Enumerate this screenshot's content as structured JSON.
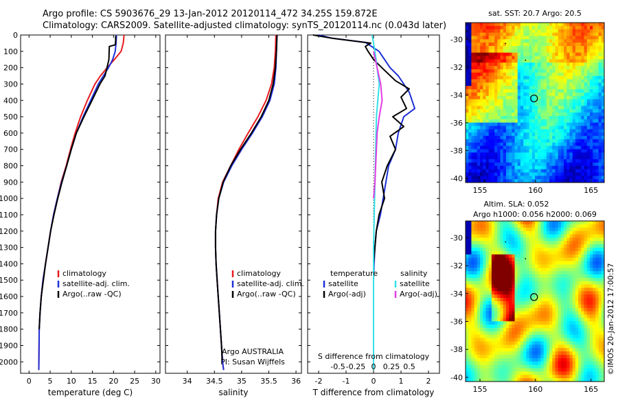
{
  "header": {
    "line1": "Argo profile: CS 5903676_29 13-Jan-2012 20120114_472 34.25S 159.872E",
    "line2": "Climatology: CARS2009. Satellite-adjusted climatology: synTS_20120114.nc (0.043d later)"
  },
  "colors": {
    "red": "#e8191c",
    "blue": "#1c2ed6",
    "black": "#000000",
    "cyan": "#33e0e6",
    "magenta": "#e23ce2"
  },
  "chart_data": [
    {
      "type": "line",
      "id": "temperature",
      "xlabel": "temperature (deg C)",
      "ylabel": "",
      "xlim": [
        -2,
        31
      ],
      "ylim": [
        2070,
        0
      ],
      "xticks": [
        0,
        5,
        10,
        15,
        20,
        25,
        30
      ],
      "yticks": [
        0,
        100,
        200,
        300,
        400,
        500,
        600,
        700,
        800,
        900,
        1000,
        1100,
        1200,
        1300,
        1400,
        1500,
        1600,
        1700,
        1800,
        1900,
        2000
      ],
      "legend": [
        "climatology",
        "satellite-adj. clim.",
        "Argo(..raw -QC)"
      ],
      "series": [
        {
          "name": "climatology",
          "color": "#e8191c",
          "x": [
            22.5,
            22.3,
            21.8,
            20.2,
            18.5,
            16.9,
            15.6,
            13.8,
            12.2,
            10.9,
            9.8,
            8.8,
            7.6,
            6.7,
            5.8,
            5.1,
            4.5,
            3.9,
            3.3,
            2.9,
            2.6,
            2.4,
            2.3
          ],
          "y": [
            0,
            50,
            100,
            150,
            200,
            250,
            300,
            400,
            500,
            600,
            700,
            800,
            900,
            1000,
            1100,
            1200,
            1300,
            1400,
            1500,
            1600,
            1700,
            1800,
            2050
          ]
        },
        {
          "name": "satellite-adj. clim.",
          "color": "#1c2ed6",
          "x": [
            20.7,
            20.6,
            20.4,
            19.8,
            18.8,
            17.6,
            16.4,
            14.6,
            12.8,
            11.2,
            10.0,
            8.9,
            7.7,
            6.7,
            5.8,
            5.1,
            4.5,
            3.9,
            3.3,
            2.9,
            2.6,
            2.4,
            2.3
          ],
          "y": [
            0,
            50,
            100,
            150,
            200,
            250,
            300,
            400,
            500,
            600,
            700,
            800,
            900,
            1000,
            1100,
            1200,
            1300,
            1400,
            1500,
            1600,
            1700,
            1800,
            2050
          ]
        },
        {
          "name": "Argo(..raw -QC)",
          "color": "#000000",
          "x": [
            20.5,
            20.5,
            20.4,
            19.0,
            18.9,
            18.0,
            16.8,
            14.9,
            13.0,
            11.2,
            10.0,
            8.9,
            7.8,
            6.8,
            5.9,
            5.1,
            4.5,
            3.9,
            3.4,
            2.9,
            2.6,
            2.4
          ],
          "y": [
            5,
            40,
            60,
            70,
            150,
            250,
            300,
            400,
            500,
            600,
            700,
            800,
            900,
            1000,
            1100,
            1200,
            1300,
            1400,
            1500,
            1600,
            1700,
            1800
          ]
        }
      ]
    },
    {
      "type": "line",
      "id": "salinity",
      "xlabel": "salinity",
      "ylabel": "",
      "xlim": [
        33.6,
        36.1
      ],
      "ylim": [
        2070,
        0
      ],
      "xticks": [
        34,
        34.5,
        35,
        35.5,
        36
      ],
      "legend": [
        "climatology",
        "satellite-adj. clim.",
        "Argo(..raw -QC)"
      ],
      "annotation": [
        "Argo AUSTRALIA",
        "PI: Susan Wijffels"
      ],
      "series": [
        {
          "name": "climatology",
          "color": "#e8191c",
          "x": [
            35.63,
            35.62,
            35.6,
            35.55,
            35.45,
            35.3,
            35.12,
            34.95,
            34.8,
            34.65,
            34.57,
            34.54,
            34.52,
            34.52,
            34.53,
            34.55,
            34.57,
            34.59,
            34.61,
            34.63,
            34.65,
            34.66,
            34.67
          ],
          "y": [
            0,
            100,
            200,
            300,
            400,
            500,
            600,
            700,
            800,
            900,
            1000,
            1100,
            1200,
            1300,
            1400,
            1500,
            1600,
            1700,
            1800,
            1900,
            2000,
            2030,
            2050
          ]
        },
        {
          "name": "satellite-adj. clim.",
          "color": "#1c2ed6",
          "x": [
            35.65,
            35.64,
            35.63,
            35.6,
            35.52,
            35.38,
            35.2,
            35.0,
            34.82,
            34.67,
            34.58,
            34.54,
            34.52,
            34.52,
            34.53,
            34.55,
            34.57,
            34.59,
            34.61,
            34.63,
            34.65,
            34.66,
            34.67
          ],
          "y": [
            0,
            100,
            200,
            300,
            400,
            500,
            600,
            700,
            800,
            900,
            1000,
            1100,
            1200,
            1300,
            1400,
            1500,
            1600,
            1700,
            1800,
            1900,
            2000,
            2030,
            2050
          ]
        },
        {
          "name": "Argo(..raw -QC)",
          "color": "#000000",
          "x": [
            35.65,
            35.64,
            35.62,
            35.58,
            35.5,
            35.36,
            35.18,
            34.98,
            34.8,
            34.66,
            34.58,
            34.54,
            34.52,
            34.52,
            34.53,
            34.55,
            34.57,
            34.59,
            34.61,
            34.63,
            34.64
          ],
          "y": [
            0,
            100,
            200,
            300,
            400,
            500,
            600,
            700,
            800,
            900,
            1000,
            1100,
            1200,
            1300,
            1400,
            1500,
            1600,
            1700,
            1800,
            1900,
            1990
          ]
        }
      ]
    },
    {
      "type": "line",
      "id": "difference",
      "xlabel": "T difference from climatology",
      "xlabel_top": "S difference from climatology",
      "xlim": [
        -2.4,
        2.4
      ],
      "ylim": [
        2070,
        0
      ],
      "xticks": [
        -2,
        -1,
        0,
        1,
        2
      ],
      "xtick_labels": [
        "-2",
        "-1",
        "0",
        "1",
        "2"
      ],
      "sticks": [
        -0.5,
        -0.25,
        0,
        0.25,
        0.5
      ],
      "stick_labels": [
        "-0.5",
        "-0.25",
        "0",
        "0.25",
        "0.5"
      ],
      "legend_temperature": [
        "temperature",
        "satellite",
        "Argo(-adj)"
      ],
      "legend_salinity": [
        "salinity",
        "satellite",
        "Argo(-adj)"
      ],
      "series": [
        {
          "name": "T satellite",
          "color": "#1c2ed6",
          "x": [
            -2.0,
            -1.5,
            -0.3,
            0.2,
            0.6,
            0.9,
            1.3,
            1.5,
            1.1,
            0.9,
            0.8,
            0.55,
            0.45,
            0.35,
            0.25,
            0.1,
            0.05,
            0.02,
            0.0,
            0.0,
            0.0
          ],
          "y": [
            0,
            20,
            45,
            100,
            200,
            250,
            350,
            450,
            500,
            600,
            700,
            800,
            900,
            1000,
            1100,
            1200,
            1300,
            1400,
            1500,
            1700,
            2000
          ]
        },
        {
          "name": "T Argo(-adj)",
          "color": "#000000",
          "x": [
            -2.2,
            -1.5,
            -0.1,
            -0.3,
            -0.2,
            0.0,
            0.3,
            0.8,
            1.3,
            1.0,
            1.2,
            0.7,
            1.1,
            0.6,
            0.8,
            0.5,
            0.3,
            0.4,
            0.2,
            0.1,
            0.0,
            0.0
          ],
          "y": [
            0,
            20,
            50,
            70,
            100,
            150,
            200,
            280,
            330,
            380,
            450,
            500,
            560,
            620,
            700,
            800,
            900,
            1000,
            1100,
            1200,
            1400,
            1500
          ]
        },
        {
          "name": "S satellite",
          "color": "#33e0e6",
          "x": [
            -0.02,
            0.02,
            0.05,
            0.08,
            0.06,
            0.04,
            0.03,
            0.02,
            0.01,
            0.0,
            0.0,
            0.0
          ],
          "y": [
            0,
            100,
            200,
            300,
            400,
            500,
            700,
            900,
            1100,
            1300,
            1700,
            2050
          ]
        },
        {
          "name": "S Argo(-adj)",
          "color": "#e23ce2",
          "x": [
            0.0,
            0.05,
            0.1,
            0.12,
            0.08,
            0.05,
            0.04,
            0.03,
            0.02,
            0.0
          ],
          "y": [
            100,
            200,
            300,
            400,
            500,
            600,
            700,
            800,
            900,
            1000
          ]
        }
      ]
    },
    {
      "type": "heatmap",
      "id": "sst-map",
      "title": "sat. SST: 20.7 Argo: 20.5",
      "xlim": [
        153.7,
        166.2
      ],
      "ylim": [
        -40.3,
        -28.8
      ],
      "xticks": [
        155,
        160,
        165
      ],
      "yticks": [
        -30,
        -32,
        -34,
        -36,
        -38,
        -40
      ],
      "marker": {
        "lon": 159.872,
        "lat": -34.25
      }
    },
    {
      "type": "heatmap",
      "id": "sla-map",
      "title": "Altim. SLA: 0.052",
      "subtitle": "Argo h1000: 0.056 h2000: 0.069",
      "xlim": [
        153.7,
        166.2
      ],
      "ylim": [
        -40.3,
        -28.8
      ],
      "xticks": [
        155,
        160,
        165
      ],
      "yticks": [
        -30,
        -32,
        -34,
        -36,
        -38,
        -40
      ],
      "marker": {
        "lon": 159.872,
        "lat": -34.25
      }
    }
  ],
  "credit": "©IMOS 20-Jan-2012 17:00:57"
}
